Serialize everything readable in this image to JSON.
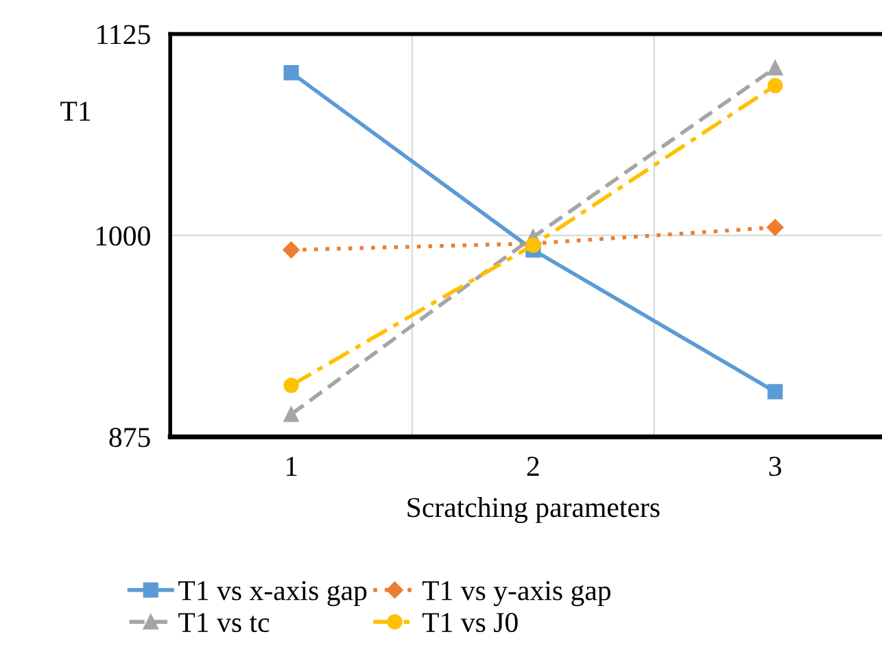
{
  "chart_data": {
    "type": "line",
    "xlabel": "Scratching parameters",
    "ylabel": "T1",
    "categories": [
      "1",
      "2",
      "3"
    ],
    "series": [
      {
        "name": "T1 vs x-axis gap",
        "color": "#5b9bd5",
        "values": [
          1101,
          991,
          903
        ],
        "marker": "square",
        "line_style": "solid"
      },
      {
        "name": "T1 vs y-axis gap",
        "color": "#ed7d31",
        "values": [
          991,
          995,
          1005
        ],
        "marker": "diamond",
        "line_style": "dotted"
      },
      {
        "name": "T1 vs tc",
        "color": "#a5a5a5",
        "values": [
          889,
          999,
          1104
        ],
        "marker": "triangle",
        "line_style": "dashed"
      },
      {
        "name": "T1 vs J0",
        "color": "#ffc000",
        "values": [
          907,
          994,
          1093
        ],
        "marker": "circle",
        "line_style": "dashdot"
      }
    ],
    "ylim": [
      875,
      1125
    ],
    "yticks": [
      875,
      1000,
      1125
    ],
    "grid": true,
    "legend": "bottom"
  }
}
